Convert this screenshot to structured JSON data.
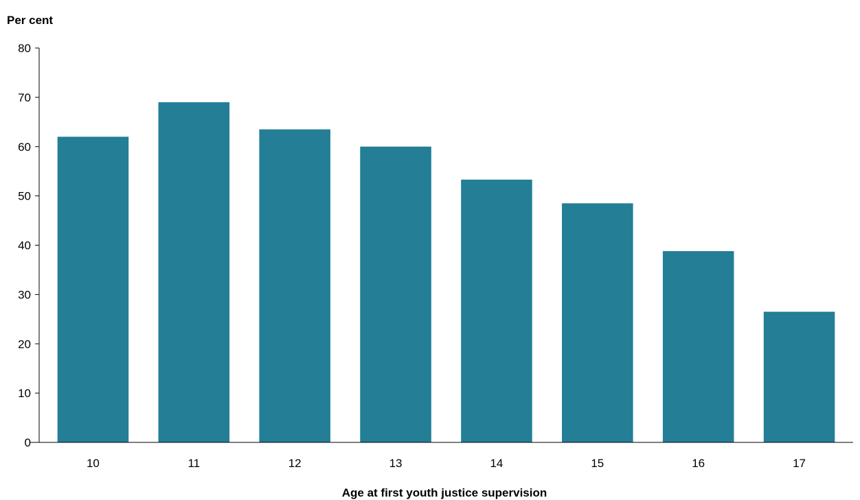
{
  "chart_data": {
    "type": "bar",
    "title": "",
    "ylabel": "Per cent",
    "xlabel": "Age at first youth justice supervision",
    "categories": [
      "10",
      "11",
      "12",
      "13",
      "14",
      "15",
      "16",
      "17"
    ],
    "values": [
      62.0,
      69.0,
      63.5,
      60.0,
      53.3,
      48.5,
      38.8,
      26.5
    ],
    "ylim": [
      0,
      80
    ],
    "yticks": [
      "0",
      "10",
      "20",
      "30",
      "40",
      "50",
      "60",
      "70",
      "80"
    ],
    "grid": false,
    "bar_color": "#237e96"
  }
}
